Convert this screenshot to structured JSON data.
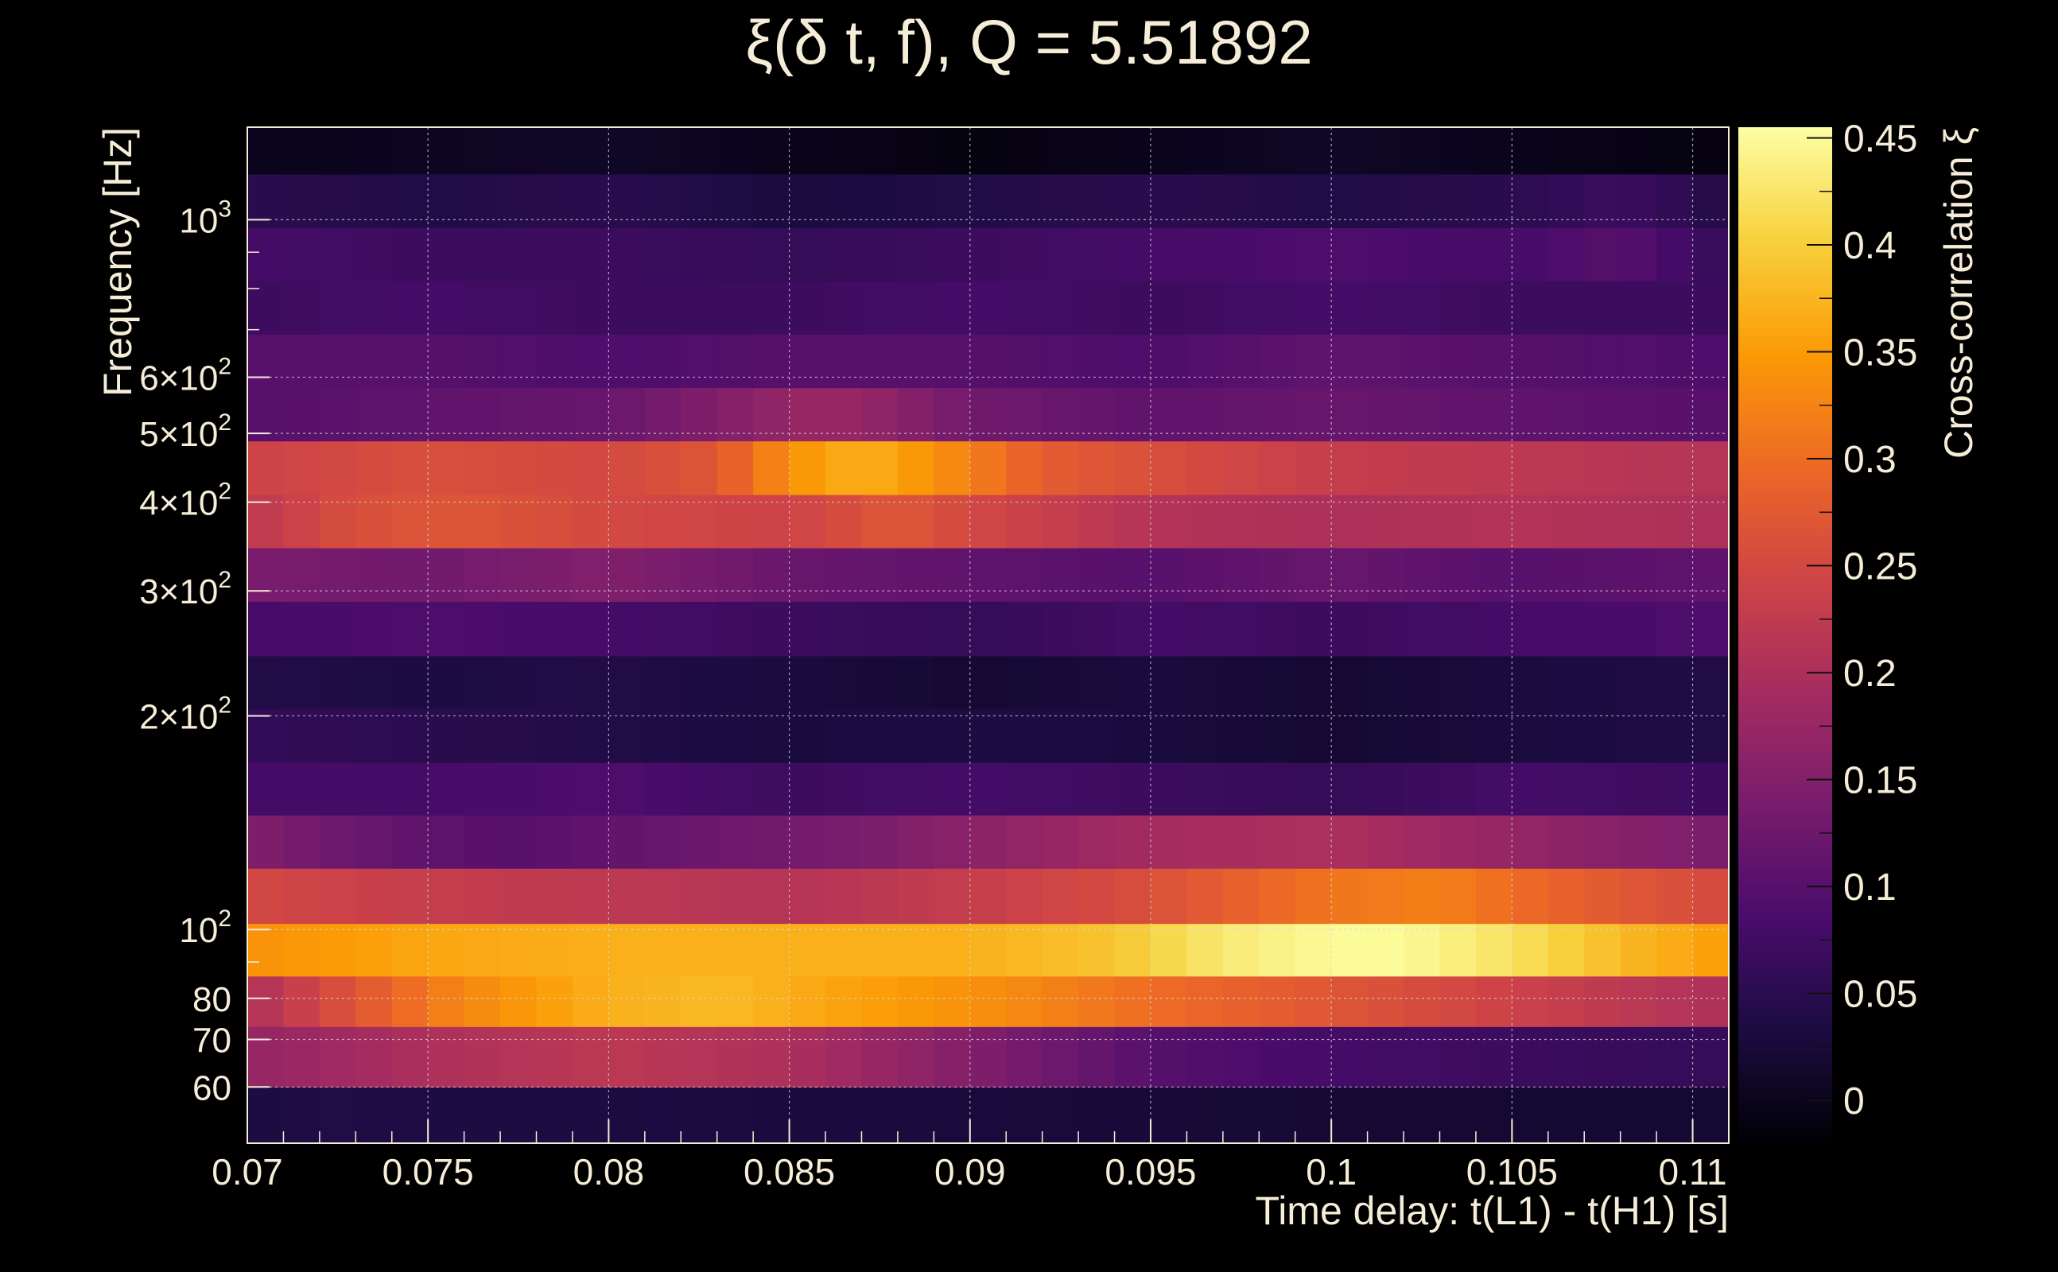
{
  "chart_data": {
    "type": "heatmap",
    "title": "ξ(δ t, f), Q = 5.51892",
    "xlabel": "Time delay: t(L1) - t(H1) [s]",
    "ylabel": "Frequency [Hz]",
    "colorbar_label": "Cross-correlation ξ",
    "xlim": [
      0.07,
      0.111
    ],
    "ylim": [
      50,
      1350
    ],
    "y_scale": "log",
    "zlim": [
      -0.02,
      0.455
    ],
    "grid": true,
    "x_ticks": [
      {
        "value": 0.07,
        "label": "0.07"
      },
      {
        "value": 0.075,
        "label": "0.075"
      },
      {
        "value": 0.08,
        "label": "0.08"
      },
      {
        "value": 0.085,
        "label": "0.085"
      },
      {
        "value": 0.09,
        "label": "0.09"
      },
      {
        "value": 0.095,
        "label": "0.095"
      },
      {
        "value": 0.1,
        "label": "0.1"
      },
      {
        "value": 0.105,
        "label": "0.105"
      },
      {
        "value": 0.11,
        "label": "0.11"
      }
    ],
    "y_ticks": [
      {
        "value": 60,
        "label": "60"
      },
      {
        "value": 70,
        "label": "70"
      },
      {
        "value": 80,
        "label": "80"
      },
      {
        "value": 100,
        "label": "10",
        "exp": "2"
      },
      {
        "value": 200,
        "label": "2×10",
        "exp": "2"
      },
      {
        "value": 300,
        "label": "3×10",
        "exp": "2"
      },
      {
        "value": 400,
        "label": "4×10",
        "exp": "2"
      },
      {
        "value": 500,
        "label": "5×10",
        "exp": "2"
      },
      {
        "value": 600,
        "label": "6×10",
        "exp": "2"
      },
      {
        "value": 1000,
        "label": "10",
        "exp": "3"
      }
    ],
    "colorbar_ticks": [
      {
        "value": 0,
        "label": "0"
      },
      {
        "value": 0.05,
        "label": "0.05"
      },
      {
        "value": 0.1,
        "label": "0.1"
      },
      {
        "value": 0.15,
        "label": "0.15"
      },
      {
        "value": 0.2,
        "label": "0.2"
      },
      {
        "value": 0.25,
        "label": "0.25"
      },
      {
        "value": 0.3,
        "label": "0.3"
      },
      {
        "value": 0.35,
        "label": "0.35"
      },
      {
        "value": 0.4,
        "label": "0.4"
      },
      {
        "value": 0.45,
        "label": "0.45"
      }
    ],
    "colormap": [
      "#000004",
      "#1b0c41",
      "#4a0c6b",
      "#781c6d",
      "#a52c60",
      "#cf4446",
      "#ed6925",
      "#fb9b06",
      "#f7d13d",
      "#fcffa4"
    ],
    "frequency_bands": [
      {
        "f_low": 50,
        "f_high": 60,
        "profile": [
          [
            0.07,
            0.03
          ],
          [
            0.072,
            0.04
          ],
          [
            0.075,
            0.035
          ],
          [
            0.085,
            0.03
          ],
          [
            0.095,
            0.025
          ],
          [
            0.105,
            0.02
          ],
          [
            0.111,
            0.02
          ]
        ]
      },
      {
        "f_low": 60,
        "f_high": 73,
        "profile": [
          [
            0.07,
            0.17
          ],
          [
            0.075,
            0.2
          ],
          [
            0.08,
            0.22
          ],
          [
            0.085,
            0.2
          ],
          [
            0.09,
            0.15
          ],
          [
            0.095,
            0.1
          ],
          [
            0.1,
            0.08
          ],
          [
            0.105,
            0.07
          ],
          [
            0.111,
            0.06
          ]
        ]
      },
      {
        "f_low": 73,
        "f_high": 86,
        "profile": [
          [
            0.07,
            0.2
          ],
          [
            0.073,
            0.27
          ],
          [
            0.076,
            0.33
          ],
          [
            0.08,
            0.37
          ],
          [
            0.083,
            0.38
          ],
          [
            0.086,
            0.36
          ],
          [
            0.09,
            0.34
          ],
          [
            0.095,
            0.3
          ],
          [
            0.1,
            0.27
          ],
          [
            0.105,
            0.24
          ],
          [
            0.111,
            0.2
          ]
        ]
      },
      {
        "f_low": 86,
        "f_high": 102,
        "profile": [
          [
            0.07,
            0.34
          ],
          [
            0.075,
            0.36
          ],
          [
            0.08,
            0.37
          ],
          [
            0.085,
            0.37
          ],
          [
            0.09,
            0.37
          ],
          [
            0.094,
            0.39
          ],
          [
            0.097,
            0.43
          ],
          [
            0.1,
            0.45
          ],
          [
            0.102,
            0.45
          ],
          [
            0.105,
            0.42
          ],
          [
            0.108,
            0.38
          ],
          [
            0.111,
            0.35
          ]
        ]
      },
      {
        "f_low": 102,
        "f_high": 122,
        "profile": [
          [
            0.07,
            0.25
          ],
          [
            0.075,
            0.23
          ],
          [
            0.08,
            0.22
          ],
          [
            0.085,
            0.21
          ],
          [
            0.09,
            0.23
          ],
          [
            0.095,
            0.26
          ],
          [
            0.1,
            0.31
          ],
          [
            0.103,
            0.32
          ],
          [
            0.106,
            0.29
          ],
          [
            0.111,
            0.25
          ]
        ]
      },
      {
        "f_low": 122,
        "f_high": 145,
        "profile": [
          [
            0.07,
            0.15
          ],
          [
            0.073,
            0.12
          ],
          [
            0.077,
            0.1
          ],
          [
            0.082,
            0.12
          ],
          [
            0.087,
            0.14
          ],
          [
            0.09,
            0.16
          ],
          [
            0.095,
            0.19
          ],
          [
            0.1,
            0.2
          ],
          [
            0.105,
            0.17
          ],
          [
            0.111,
            0.14
          ]
        ]
      },
      {
        "f_low": 145,
        "f_high": 172,
        "profile": [
          [
            0.07,
            0.08
          ],
          [
            0.075,
            0.08
          ],
          [
            0.08,
            0.09
          ],
          [
            0.085,
            0.07
          ],
          [
            0.09,
            0.08
          ],
          [
            0.095,
            0.07
          ],
          [
            0.1,
            0.06
          ],
          [
            0.105,
            0.08
          ],
          [
            0.111,
            0.07
          ]
        ]
      },
      {
        "f_low": 172,
        "f_high": 205,
        "profile": [
          [
            0.07,
            0.06
          ],
          [
            0.075,
            0.05
          ],
          [
            0.08,
            0.04
          ],
          [
            0.085,
            0.03
          ],
          [
            0.09,
            0.035
          ],
          [
            0.095,
            0.03
          ],
          [
            0.1,
            0.02
          ],
          [
            0.105,
            0.03
          ],
          [
            0.111,
            0.04
          ]
        ]
      },
      {
        "f_low": 205,
        "f_high": 243,
        "profile": [
          [
            0.07,
            0.04
          ],
          [
            0.075,
            0.035
          ],
          [
            0.08,
            0.04
          ],
          [
            0.085,
            0.03
          ],
          [
            0.09,
            0.02
          ],
          [
            0.095,
            0.03
          ],
          [
            0.1,
            0.02
          ],
          [
            0.105,
            0.03
          ],
          [
            0.111,
            0.04
          ]
        ]
      },
      {
        "f_low": 243,
        "f_high": 290,
        "profile": [
          [
            0.07,
            0.08
          ],
          [
            0.075,
            0.09
          ],
          [
            0.08,
            0.08
          ],
          [
            0.085,
            0.07
          ],
          [
            0.09,
            0.06
          ],
          [
            0.095,
            0.08
          ],
          [
            0.1,
            0.07
          ],
          [
            0.105,
            0.08
          ],
          [
            0.111,
            0.09
          ]
        ]
      },
      {
        "f_low": 290,
        "f_high": 345,
        "profile": [
          [
            0.07,
            0.14
          ],
          [
            0.075,
            0.13
          ],
          [
            0.08,
            0.15
          ],
          [
            0.085,
            0.12
          ],
          [
            0.09,
            0.11
          ],
          [
            0.095,
            0.1
          ],
          [
            0.1,
            0.12
          ],
          [
            0.105,
            0.1
          ],
          [
            0.111,
            0.11
          ]
        ]
      },
      {
        "f_low": 345,
        "f_high": 410,
        "profile": [
          [
            0.07,
            0.22
          ],
          [
            0.073,
            0.26
          ],
          [
            0.076,
            0.27
          ],
          [
            0.08,
            0.25
          ],
          [
            0.085,
            0.24
          ],
          [
            0.088,
            0.27
          ],
          [
            0.09,
            0.25
          ],
          [
            0.095,
            0.21
          ],
          [
            0.1,
            0.2
          ],
          [
            0.105,
            0.21
          ],
          [
            0.111,
            0.2
          ]
        ]
      },
      {
        "f_low": 410,
        "f_high": 488,
        "profile": [
          [
            0.07,
            0.24
          ],
          [
            0.075,
            0.26
          ],
          [
            0.08,
            0.25
          ],
          [
            0.083,
            0.27
          ],
          [
            0.085,
            0.34
          ],
          [
            0.087,
            0.37
          ],
          [
            0.089,
            0.34
          ],
          [
            0.092,
            0.28
          ],
          [
            0.095,
            0.26
          ],
          [
            0.1,
            0.23
          ],
          [
            0.105,
            0.22
          ],
          [
            0.111,
            0.21
          ]
        ]
      },
      {
        "f_low": 488,
        "f_high": 580,
        "profile": [
          [
            0.07,
            0.1
          ],
          [
            0.075,
            0.11
          ],
          [
            0.08,
            0.12
          ],
          [
            0.083,
            0.15
          ],
          [
            0.086,
            0.18
          ],
          [
            0.088,
            0.16
          ],
          [
            0.09,
            0.13
          ],
          [
            0.095,
            0.11
          ],
          [
            0.1,
            0.12
          ],
          [
            0.105,
            0.11
          ],
          [
            0.111,
            0.1
          ]
        ]
      },
      {
        "f_low": 580,
        "f_high": 690,
        "profile": [
          [
            0.07,
            0.1
          ],
          [
            0.075,
            0.1
          ],
          [
            0.08,
            0.09
          ],
          [
            0.085,
            0.1
          ],
          [
            0.09,
            0.1
          ],
          [
            0.095,
            0.09
          ],
          [
            0.1,
            0.11
          ],
          [
            0.105,
            0.1
          ],
          [
            0.111,
            0.09
          ]
        ]
      },
      {
        "f_low": 690,
        "f_high": 820,
        "profile": [
          [
            0.07,
            0.07
          ],
          [
            0.075,
            0.08
          ],
          [
            0.08,
            0.07
          ],
          [
            0.085,
            0.07
          ],
          [
            0.09,
            0.08
          ],
          [
            0.095,
            0.07
          ],
          [
            0.1,
            0.08
          ],
          [
            0.105,
            0.07
          ],
          [
            0.111,
            0.07
          ]
        ]
      },
      {
        "f_low": 820,
        "f_high": 975,
        "profile": [
          [
            0.07,
            0.08
          ],
          [
            0.075,
            0.07
          ],
          [
            0.08,
            0.07
          ],
          [
            0.085,
            0.06
          ],
          [
            0.09,
            0.07
          ],
          [
            0.095,
            0.08
          ],
          [
            0.1,
            0.09
          ],
          [
            0.105,
            0.08
          ],
          [
            0.108,
            0.1
          ],
          [
            0.111,
            0.06
          ]
        ]
      },
      {
        "f_low": 975,
        "f_high": 1160,
        "profile": [
          [
            0.07,
            0.05
          ],
          [
            0.075,
            0.04
          ],
          [
            0.08,
            0.05
          ],
          [
            0.085,
            0.03
          ],
          [
            0.09,
            0.04
          ],
          [
            0.095,
            0.05
          ],
          [
            0.1,
            0.04
          ],
          [
            0.105,
            0.05
          ],
          [
            0.108,
            0.07
          ],
          [
            0.111,
            0.04
          ]
        ]
      },
      {
        "f_low": 1160,
        "f_high": 1350,
        "profile": [
          [
            0.07,
            0.0
          ],
          [
            0.075,
            0.005
          ],
          [
            0.08,
            0.01
          ],
          [
            0.085,
            0.0
          ],
          [
            0.09,
            -0.01
          ],
          [
            0.095,
            0.0
          ],
          [
            0.1,
            0.01
          ],
          [
            0.105,
            0.0
          ],
          [
            0.111,
            -0.01
          ]
        ]
      }
    ]
  }
}
